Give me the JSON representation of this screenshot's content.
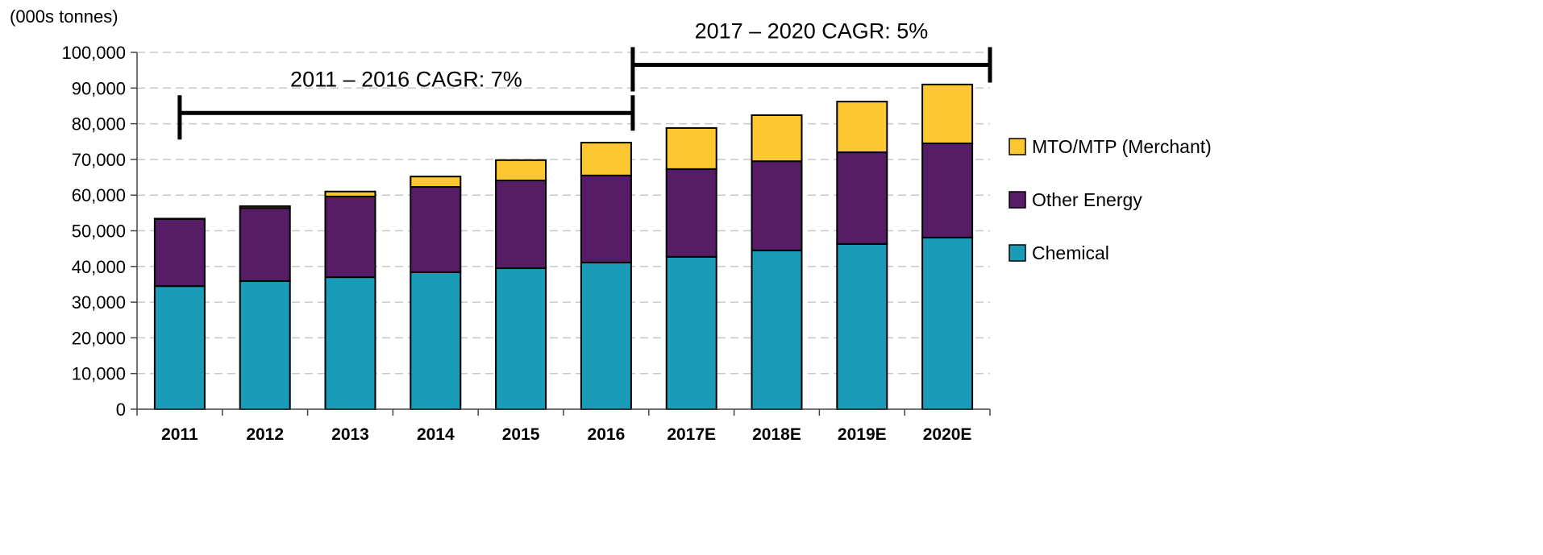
{
  "chart_data": {
    "type": "bar",
    "stacked": true,
    "title": "",
    "ylabel": "(000s tonnes)",
    "xlabel": "",
    "ylim": [
      0,
      100000
    ],
    "yticks": [
      0,
      10000,
      20000,
      30000,
      40000,
      50000,
      60000,
      70000,
      80000,
      90000,
      100000
    ],
    "ytick_labels": [
      "0",
      "10,000",
      "20,000",
      "30,000",
      "40,000",
      "50,000",
      "60,000",
      "70,000",
      "80,000",
      "90,000",
      "100,000"
    ],
    "grid": "horizontal dashed",
    "legend_position": "right",
    "categories": [
      "2011",
      "2012",
      "2013",
      "2014",
      "2015",
      "2016",
      "2017E",
      "2018E",
      "2019E",
      "2020E"
    ],
    "series": [
      {
        "name": "Chemical",
        "color": "#1a9bb8",
        "values": [
          34500,
          35900,
          37000,
          38400,
          39500,
          41100,
          42700,
          44500,
          46300,
          48100
        ]
      },
      {
        "name": "Other Energy",
        "color": "#561c66",
        "values": [
          18800,
          20500,
          22600,
          23900,
          24600,
          24400,
          24600,
          25000,
          25700,
          26400
        ]
      },
      {
        "name": "MTO/MTP (Merchant)",
        "color": "#fdc82f",
        "values": [
          100,
          500,
          1400,
          2900,
          5700,
          9200,
          11500,
          12900,
          14200,
          16500
        ]
      }
    ],
    "annotations": [
      {
        "text": "2011 – 2016 CAGR: 7%",
        "from": "2011",
        "to": "2016",
        "level": 83000
      },
      {
        "text": "2017 – 2020 CAGR: 5%",
        "from": "2016",
        "to": "2020E",
        "level": 96500
      }
    ]
  }
}
